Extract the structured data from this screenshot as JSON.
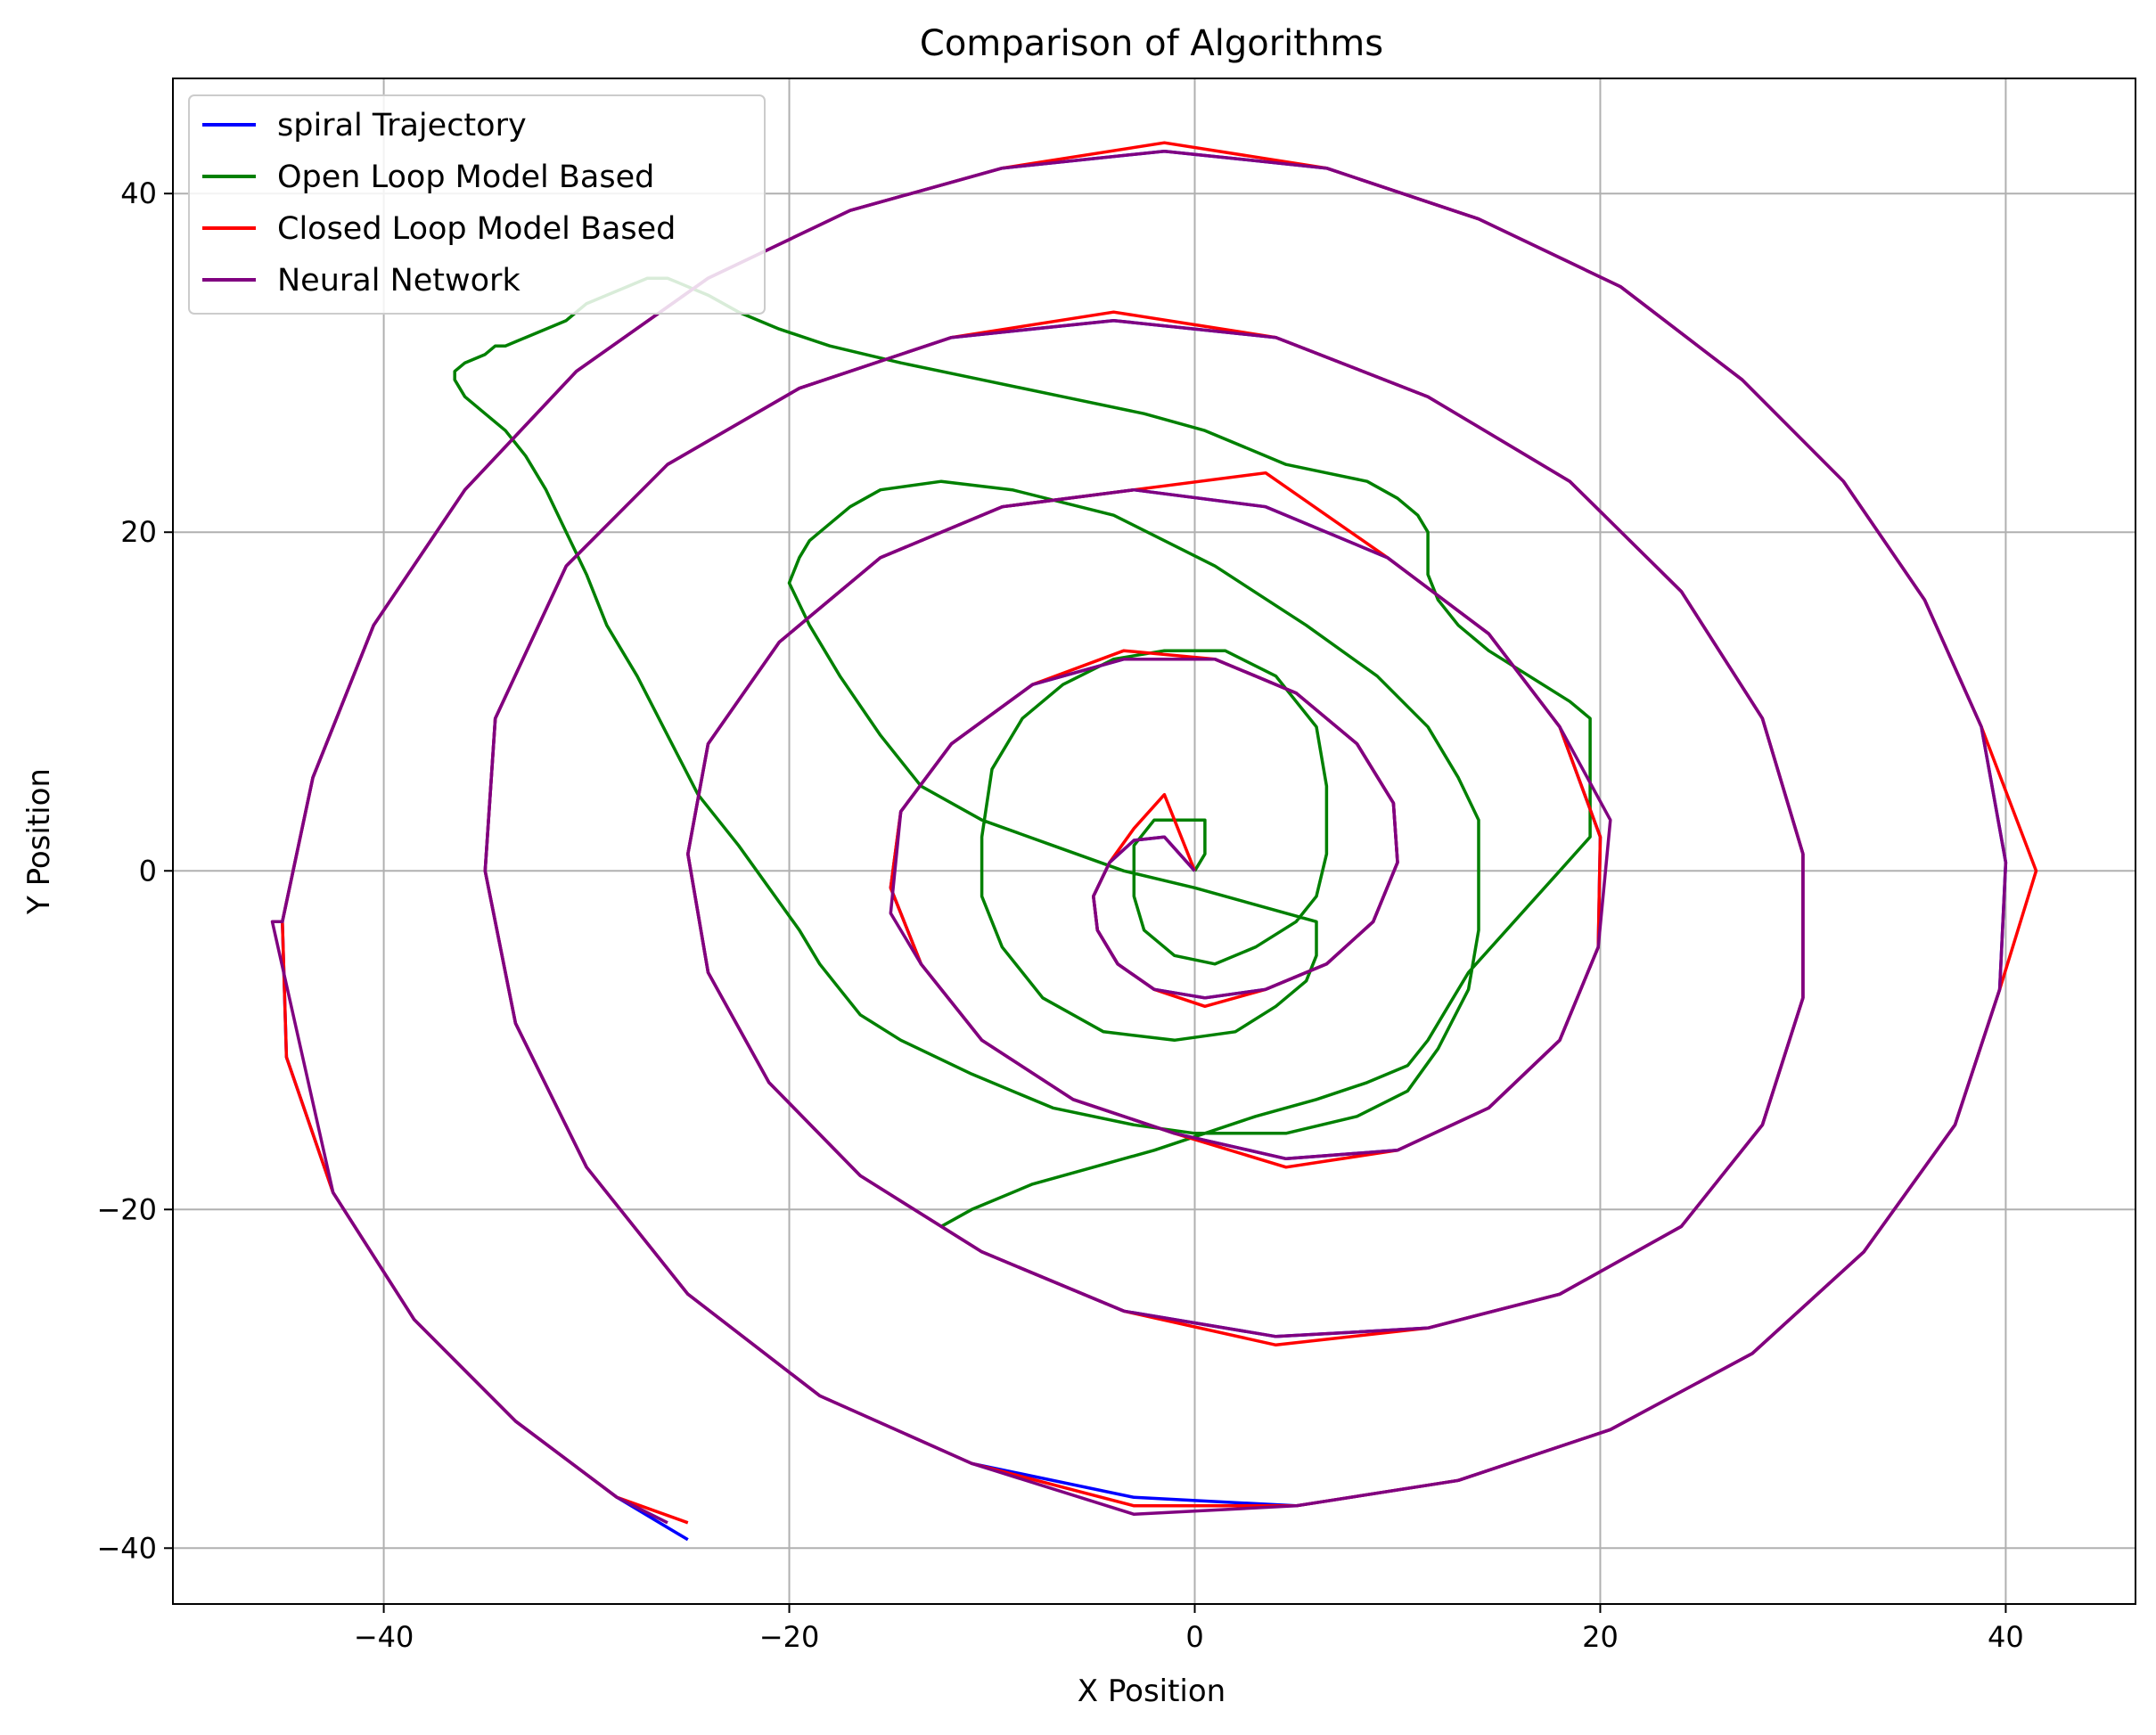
{
  "chart_data": {
    "type": "line",
    "title": "Comparison of Algorithms",
    "xlabel": "X Position",
    "ylabel": "Y Position",
    "xlim": [
      -50.4,
      46.4
    ],
    "ylim": [
      -43.3,
      46.8
    ],
    "xticks": [
      -40,
      -20,
      0,
      20,
      40
    ],
    "yticks": [
      -40,
      -20,
      0,
      20,
      40
    ],
    "xtick_labels": [
      "−40",
      "−20",
      "0",
      "20",
      "40"
    ],
    "ytick_labels": [
      "−40",
      "−20",
      "0",
      "20",
      "40"
    ],
    "grid": true,
    "legend_position": "top-left",
    "series": [
      {
        "name": "spiral Trajectory",
        "color": "#0000ff",
        "x": [
          0.0,
          -1.5,
          -3.0,
          -4.2,
          -5.0,
          -4.8,
          -3.8,
          -2.0,
          0.5,
          3.5,
          6.5,
          8.8,
          10.0,
          9.8,
          8.0,
          5.0,
          1.0,
          -3.5,
          -8.0,
          -12.0,
          -14.5,
          -15.0,
          -13.5,
          -10.5,
          -6.0,
          -1.0,
          4.5,
          10.0,
          14.5,
          18.0,
          19.9,
          20.0,
          18.0,
          14.5,
          9.5,
          3.5,
          -3.0,
          -9.5,
          -15.5,
          -20.5,
          -24.0,
          -25.0,
          -24.0,
          -21.0,
          -16.5,
          -10.5,
          -3.5,
          4.0,
          11.5,
          18.0,
          24.0,
          28.0,
          30.0,
          30.0,
          28.0,
          24.0,
          18.5,
          11.5,
          4.0,
          -4.0,
          -12.0,
          -19.5,
          -26.0,
          -31.0,
          -34.5,
          -35.0,
          -33.5,
          -30.0,
          -25.0,
          -18.5,
          -11.0,
          -3.0,
          5.0,
          13.0,
          20.5,
          27.5,
          33.0,
          37.5,
          39.7,
          40.0,
          38.8,
          36.0,
          32.0,
          27.0,
          21.0,
          14.0,
          6.5,
          -1.5,
          -9.5,
          -17.0,
          -24.0,
          -30.5,
          -36.0,
          -40.5,
          -43.5,
          -45.0,
          -44.8,
          -42.5,
          -38.5,
          -33.5,
          -28.5,
          -25.0
        ],
        "y": [
          0.0,
          2.0,
          1.8,
          0.5,
          -1.5,
          -3.5,
          -5.5,
          -7.0,
          -7.5,
          -7.0,
          -5.5,
          -3.0,
          0.5,
          4.0,
          7.5,
          10.5,
          12.5,
          12.5,
          11.0,
          7.5,
          3.5,
          -1.0,
          -5.5,
          -10.0,
          -13.5,
          -15.5,
          -17.0,
          -16.5,
          -14.0,
          -10.0,
          -4.5,
          2.0,
          8.5,
          14.0,
          18.5,
          21.5,
          22.5,
          21.5,
          18.5,
          13.5,
          7.5,
          1.0,
          -6.0,
          -12.5,
          -18.0,
          -22.5,
          -26.0,
          -27.5,
          -27.0,
          -25.0,
          -21.0,
          -15.0,
          -7.5,
          1.0,
          9.0,
          16.5,
          23.0,
          28.0,
          31.5,
          32.5,
          31.5,
          28.5,
          24.0,
          18.0,
          9.0,
          0.0,
          -9.0,
          -17.5,
          -25.0,
          -31.0,
          -35.0,
          -37.0,
          -37.5,
          -36.0,
          -33.0,
          -28.5,
          -22.5,
          -15.0,
          -7.0,
          0.5,
          8.5,
          16.0,
          23.0,
          29.0,
          34.5,
          38.5,
          41.5,
          42.5,
          41.5,
          39.0,
          35.0,
          29.5,
          22.5,
          14.5,
          5.5,
          -3.0,
          -11.0,
          -19.0,
          -26.5,
          -32.5,
          -37.0,
          -39.5
        ]
      },
      {
        "name": "Open Loop Model Based",
        "color": "#008000",
        "x": [
          0.0,
          0.5,
          0.5,
          -0.5,
          -2.0,
          -3.0,
          -3.0,
          -2.5,
          -1.0,
          1.0,
          3.0,
          5.0,
          6.0,
          6.5,
          6.5,
          6.0,
          4.0,
          1.5,
          -1.5,
          -4.0,
          -6.5,
          -8.5,
          -10.0,
          -10.5,
          -10.5,
          -9.5,
          -7.5,
          -4.5,
          -1.0,
          2.0,
          4.0,
          5.5,
          6.0,
          6.0,
          3.0,
          0.0,
          -3.5,
          -7.0,
          -10.5,
          -13.5,
          -15.5,
          -17.5,
          -19.0,
          -20.0,
          -19.5,
          -19.0,
          -18.0,
          -17.0,
          -15.5,
          -12.5,
          -9.0,
          -4.0,
          1.0,
          5.5,
          9.0,
          11.5,
          13.0,
          14.0,
          14.0,
          14.0,
          13.5,
          12.0,
          10.5,
          8.0,
          4.5,
          0.0,
          -3.0,
          -7.0,
          -11.0,
          -14.5,
          -16.5,
          -17.5,
          -18.5,
          -19.5,
          -21.0,
          -22.5,
          -24.5,
          -26.0,
          -27.5,
          -29.0,
          -30.0,
          -31.0,
          -32.0,
          -33.0,
          -34.0,
          -35.0,
          -36.0,
          -36.5,
          -36.5,
          -36.0,
          -35.0,
          -34.5,
          -34.0,
          -33.0,
          -32.0,
          -31.0,
          -30.0,
          -29.0,
          -28.0,
          -27.0,
          -26.0,
          -25.0,
          -24.0,
          -22.5,
          -20.5,
          -18.0,
          -14.5,
          -10.5,
          -6.5,
          -2.5,
          0.5,
          2.5,
          4.5,
          6.5,
          8.5,
          10.0,
          11.0,
          11.5,
          11.5,
          11.5,
          12.0,
          13.0,
          14.5,
          16.5,
          18.5,
          19.5,
          19.5,
          19.5,
          18.0,
          16.5,
          15.0,
          13.5,
          12.5,
          11.5,
          10.5,
          8.5,
          6.0,
          3.0,
          0.5,
          -2.0,
          -5.0,
          -8.0,
          -11.0,
          -12.5
        ],
        "y": [
          0.0,
          1.0,
          3.0,
          3.0,
          3.0,
          1.5,
          -1.5,
          -3.5,
          -5.0,
          -5.5,
          -4.5,
          -3.0,
          -1.5,
          1.0,
          5.0,
          8.5,
          11.5,
          13.0,
          13.0,
          12.5,
          11.0,
          9.0,
          6.0,
          2.0,
          -1.5,
          -4.5,
          -7.5,
          -9.5,
          -10.0,
          -9.5,
          -8.0,
          -6.5,
          -5.0,
          -3.0,
          -2.0,
          -1.0,
          0.0,
          1.5,
          3.0,
          5.0,
          8.0,
          11.5,
          14.5,
          17.0,
          18.5,
          19.5,
          20.5,
          21.5,
          22.5,
          23.0,
          22.5,
          21.0,
          18.0,
          14.5,
          11.5,
          8.5,
          5.5,
          3.0,
          0.0,
          -3.5,
          -7.0,
          -10.5,
          -13.0,
          -14.5,
          -15.5,
          -15.5,
          -15.0,
          -14.0,
          -12.0,
          -10.0,
          -8.5,
          -7.0,
          -5.5,
          -3.5,
          -1.0,
          1.5,
          4.5,
          8.0,
          11.5,
          14.5,
          17.5,
          20.0,
          22.5,
          24.5,
          26.0,
          27.0,
          28.0,
          29.0,
          29.5,
          30.0,
          30.5,
          31.0,
          31.0,
          31.5,
          32.0,
          32.5,
          33.5,
          34.0,
          34.5,
          35.0,
          35.0,
          34.5,
          34.0,
          33.0,
          32.0,
          31.0,
          30.0,
          29.0,
          28.0,
          27.0,
          26.0,
          25.0,
          24.0,
          23.5,
          23.0,
          22.0,
          21.0,
          20.0,
          19.0,
          17.5,
          16.0,
          14.5,
          13.0,
          11.5,
          10.0,
          9.0,
          5.0,
          2.0,
          0.0,
          -2.0,
          -4.0,
          -6.0,
          -8.0,
          -10.0,
          -11.5,
          -12.5,
          -13.5,
          -14.5,
          -15.5,
          -16.5,
          -17.5,
          -18.5,
          -20.0,
          -21.0
        ],
        "_note": ""
      },
      {
        "name": "Closed Loop Model Based",
        "color": "#ff0000",
        "x": [
          0.0,
          -1.5,
          -3.0,
          -4.2,
          -5.0,
          -4.8,
          -3.8,
          -2.0,
          0.5,
          3.5,
          6.5,
          8.8,
          10.0,
          9.8,
          8.0,
          5.0,
          1.0,
          -3.5,
          -8.0,
          -12.0,
          -14.5,
          -15.0,
          -13.5,
          -10.5,
          -6.0,
          -1.0,
          4.5,
          10.0,
          14.5,
          18.0,
          19.9,
          20.0,
          18.0,
          14.5,
          9.5,
          3.5,
          -3.0,
          -9.5,
          -15.5,
          -20.5,
          -24.0,
          -25.0,
          -24.0,
          -21.0,
          -16.5,
          -10.5,
          -3.5,
          4.0,
          11.5,
          18.0,
          24.0,
          28.0,
          30.0,
          30.0,
          28.0,
          24.0,
          18.5,
          11.5,
          4.0,
          -4.0,
          -12.0,
          -19.5,
          -26.0,
          -31.0,
          -34.5,
          -35.0,
          -33.5,
          -30.0,
          -25.0,
          -18.5,
          -11.0,
          -3.0,
          5.0,
          13.0,
          20.5,
          27.5,
          33.0,
          37.5,
          39.7,
          41.5,
          38.8,
          36.0,
          32.0,
          27.0,
          21.0,
          14.0,
          6.5,
          -1.5,
          -9.5,
          -17.0,
          -24.0,
          -30.5,
          -36.0,
          -40.5,
          -43.5,
          -45.0,
          -44.8,
          -42.5,
          -38.5,
          -33.5,
          -28.5,
          -25.0
        ],
        "y": [
          0.0,
          4.5,
          2.5,
          0.5,
          -1.5,
          -3.5,
          -5.5,
          -7.0,
          -8.0,
          -7.0,
          -5.5,
          -3.0,
          0.5,
          4.0,
          7.5,
          10.5,
          12.5,
          13.0,
          11.0,
          7.5,
          3.5,
          -1.0,
          -5.5,
          -10.0,
          -13.5,
          -15.5,
          -17.5,
          -16.5,
          -14.0,
          -10.0,
          -4.5,
          2.0,
          8.5,
          14.0,
          18.5,
          23.5,
          22.5,
          21.5,
          18.5,
          13.5,
          7.5,
          1.0,
          -6.0,
          -12.5,
          -18.0,
          -22.5,
          -26.0,
          -28.0,
          -27.0,
          -25.0,
          -21.0,
          -15.0,
          -7.5,
          1.0,
          9.0,
          16.5,
          23.0,
          28.0,
          31.5,
          33.0,
          31.5,
          28.5,
          24.0,
          18.0,
          9.0,
          0.0,
          -9.0,
          -17.5,
          -25.0,
          -31.0,
          -35.0,
          -37.5,
          -37.5,
          -36.0,
          -33.0,
          -28.5,
          -22.5,
          -15.0,
          -7.0,
          0.0,
          8.5,
          16.0,
          23.0,
          29.0,
          34.5,
          38.5,
          41.5,
          43.0,
          41.5,
          39.0,
          35.0,
          29.5,
          22.5,
          14.5,
          5.5,
          -3.0,
          -11.0,
          -19.0,
          -26.5,
          -32.5,
          -37.0,
          -38.5
        ]
      },
      {
        "name": "Neural Network",
        "color": "#800080",
        "x": [
          0.0,
          -1.5,
          -3.0,
          -4.2,
          -5.0,
          -4.8,
          -3.8,
          -2.0,
          0.5,
          3.5,
          6.5,
          8.8,
          10.0,
          9.8,
          8.0,
          5.0,
          1.0,
          -3.5,
          -8.0,
          -12.0,
          -14.5,
          -15.0,
          -13.5,
          -10.5,
          -6.0,
          -1.0,
          4.5,
          10.0,
          14.5,
          18.0,
          19.9,
          20.5,
          18.0,
          14.5,
          9.5,
          3.5,
          -3.0,
          -9.5,
          -15.5,
          -20.5,
          -24.0,
          -25.0,
          -24.0,
          -21.0,
          -16.5,
          -10.5,
          -3.5,
          4.0,
          11.5,
          18.0,
          24.0,
          28.0,
          30.0,
          30.0,
          28.0,
          24.0,
          18.5,
          11.5,
          4.0,
          -4.0,
          -12.0,
          -19.5,
          -26.0,
          -31.0,
          -34.5,
          -35.0,
          -33.5,
          -30.0,
          -25.0,
          -18.5,
          -11.0,
          -3.0,
          5.0,
          13.0,
          20.5,
          27.5,
          33.0,
          37.5,
          39.7,
          40.0,
          38.8,
          36.0,
          32.0,
          27.0,
          21.0,
          14.0,
          6.5,
          -1.5,
          -9.5,
          -17.0,
          -24.0,
          -30.5,
          -36.0,
          -40.5,
          -43.5,
          -45.0,
          -45.5,
          -42.5,
          -38.5,
          -33.5,
          -28.5,
          -26.0
        ],
        "y": [
          0.0,
          2.0,
          1.8,
          0.5,
          -1.5,
          -3.5,
          -5.5,
          -7.0,
          -7.5,
          -7.0,
          -5.5,
          -3.0,
          0.5,
          4.0,
          7.5,
          10.5,
          12.5,
          12.5,
          11.0,
          7.5,
          3.5,
          -2.5,
          -5.5,
          -10.0,
          -13.5,
          -15.5,
          -17.0,
          -16.5,
          -14.0,
          -10.0,
          -4.5,
          3.0,
          8.5,
          14.0,
          18.5,
          21.5,
          22.5,
          21.5,
          18.5,
          13.5,
          7.5,
          1.0,
          -6.0,
          -12.5,
          -18.0,
          -22.5,
          -26.0,
          -27.5,
          -27.0,
          -25.0,
          -21.0,
          -15.0,
          -7.5,
          1.0,
          9.0,
          16.5,
          23.0,
          28.0,
          31.5,
          32.5,
          31.5,
          28.5,
          24.0,
          18.0,
          9.0,
          0.0,
          -9.0,
          -17.5,
          -25.0,
          -31.0,
          -35.0,
          -38.0,
          -37.5,
          -36.0,
          -33.0,
          -28.5,
          -22.5,
          -15.0,
          -7.0,
          0.5,
          8.5,
          16.0,
          23.0,
          29.0,
          34.5,
          38.5,
          41.5,
          42.5,
          41.5,
          39.0,
          35.0,
          29.5,
          22.5,
          14.5,
          5.5,
          -3.0,
          -3.0,
          -19.0,
          -26.5,
          -32.5,
          -37.0,
          -38.5
        ]
      }
    ]
  }
}
